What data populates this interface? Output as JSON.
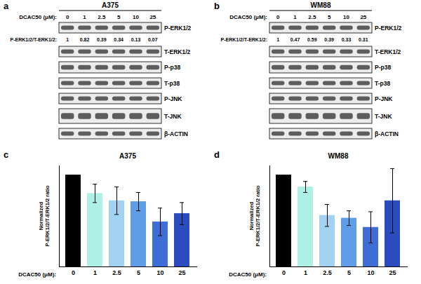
{
  "panels": [
    {
      "panel": "a",
      "title": "A375",
      "dose_label": "DCAC50 (μM):",
      "doses": [
        0,
        1,
        2.5,
        5,
        10,
        25
      ],
      "ratio_label": "P-ERK1/2/T-ERK1/2:",
      "ratios": [
        1,
        0.82,
        0.39,
        0.34,
        0.13,
        0.07
      ],
      "rows": [
        "P-ERK1/2",
        "T-ERK1/2",
        "P-p38",
        "T-p38",
        "P-JNK",
        "T-JNK",
        "β-ACTIN"
      ]
    },
    {
      "panel": "b",
      "title": "WM88",
      "dose_label": "DCAC50 (μM):",
      "doses": [
        0,
        1,
        2.5,
        5,
        10,
        25
      ],
      "ratio_label": "P-ERK1/2/T-ERK1/2:",
      "ratios": [
        1,
        0.47,
        0.59,
        0.39,
        0.33,
        0.31
      ],
      "rows": [
        "P-ERK1/2",
        "T-ERK1/2",
        "P-p38",
        "T-p38",
        "P-JNK",
        "T-JNK",
        "β-ACTIN"
      ]
    }
  ],
  "chart_data": [
    {
      "type": "bar",
      "panel": "c",
      "title": "A375",
      "x_label": "DCAC50 (μM):",
      "y_label": "Normalized P-ERK1/2/T-ERK1/2 ratio",
      "categories": [
        0,
        1,
        2.5,
        5,
        10,
        25
      ],
      "values": [
        1,
        0.8,
        0.72,
        0.71,
        0.49,
        0.58
      ],
      "errors": [
        0,
        0.1,
        0.15,
        0.1,
        0.15,
        0.12
      ],
      "colors": [
        "#000000",
        "#aef0e6",
        "#a2d2f2",
        "#5f9ee6",
        "#3c6ed6",
        "#2a4cbe"
      ],
      "ylim": [
        0,
        1.1
      ],
      "yticks": [],
      "tick_labels": "x"
    },
    {
      "type": "bar",
      "panel": "d",
      "title": "WM88",
      "x_label": "DCAC50 (μM):",
      "y_label": "Normalized P-ERK1/2/T-ERK1/2 ratio",
      "categories": [
        0,
        1,
        2.5,
        5,
        10,
        25
      ],
      "values": [
        1,
        0.87,
        0.56,
        0.53,
        0.43,
        0.72
      ],
      "errors": [
        0,
        0.06,
        0.12,
        0.08,
        0.17,
        0.35
      ],
      "colors": [
        "#000000",
        "#aef0e6",
        "#a2d2f2",
        "#5f9ee6",
        "#3c6ed6",
        "#2a4cbe"
      ],
      "ylim": [
        0,
        1.1
      ],
      "yticks": [],
      "tick_labels": "x"
    }
  ]
}
